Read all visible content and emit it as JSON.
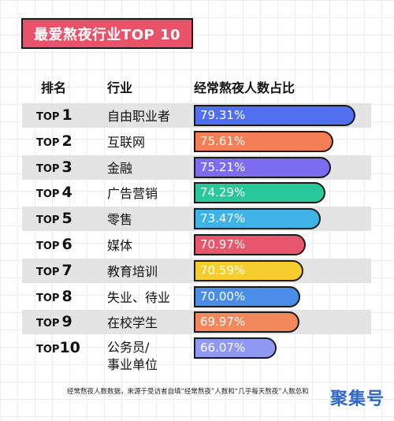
{
  "title": "最爱熬夜行业TOP 10",
  "headers": {
    "rank": "排名",
    "industry": "行业",
    "ratio": "经常熬夜人数占比"
  },
  "rank_prefix": "TOP",
  "footnote": "经常熬夜人数数据，来源于受访者自填“经常熬夜”人数和“几乎每天熬夜”人数总和",
  "watermark": "聚集号",
  "chart_data": {
    "type": "bar",
    "orientation": "horizontal",
    "title": "最爱熬夜行业TOP 10",
    "categories": [
      "自由职业者",
      "互联网",
      "金融",
      "广告营销",
      "零售",
      "媒体",
      "教育培训",
      "失业、待业",
      "在校学生",
      "公务员/事业单位"
    ],
    "values": [
      79.31,
      75.61,
      75.21,
      74.29,
      73.47,
      70.97,
      70.59,
      70.0,
      69.97,
      66.07
    ],
    "labels": [
      "79.31%",
      "75.61%",
      "75.21%",
      "74.29%",
      "73.47%",
      "70.97%",
      "70.59%",
      "70.00%",
      "69.97%",
      "66.07%"
    ],
    "ranks": [
      "1",
      "2",
      "3",
      "4",
      "5",
      "6",
      "7",
      "8",
      "9",
      "10"
    ],
    "colors": [
      "#4f6ff0",
      "#f47e55",
      "#7c6df0",
      "#28c89a",
      "#3fb3e6",
      "#e8566b",
      "#f7cc2f",
      "#4a8de8",
      "#f2875c",
      "#9098f2"
    ],
    "row_shading": "alternating",
    "grid": false
  }
}
